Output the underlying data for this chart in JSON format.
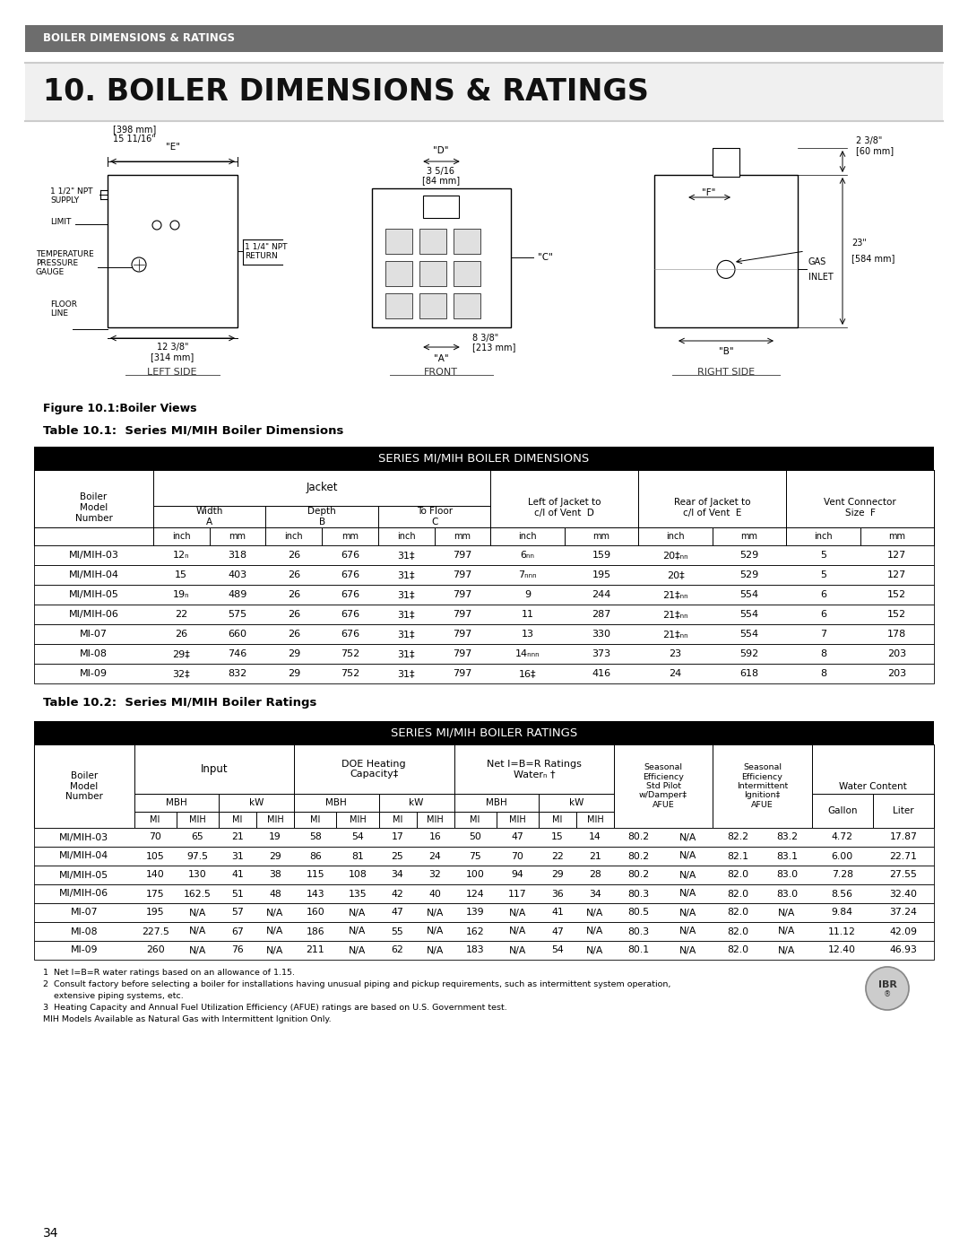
{
  "header_bar_color": "#6d6d6d",
  "header_text": "BOILER DIMENSIONS & RATINGS",
  "title_text": "10. BOILER DIMENSIONS & RATINGS",
  "figure_caption": "Figure 10.1:Boiler Views",
  "table1_title": "Table 10.1:  Series MI/MIH Boiler Dimensions",
  "table2_title": "Table 10.2:  Series MI/MIH Boiler Ratings",
  "table1_header": "SERIES MI/MIH BOILER DIMENSIONS",
  "table2_header": "SERIES MI/MIH BOILER RATINGS",
  "table1_data": [
    [
      "MI/MIH-03",
      "12ₙ",
      "318",
      "26",
      "676",
      "31‡",
      "797",
      "6ₙₙ",
      "159",
      "20‡ₙₙ",
      "529",
      "5",
      "127"
    ],
    [
      "MI/MIH-04",
      "15",
      "403",
      "26",
      "676",
      "31‡",
      "797",
      "7ₙₙₙ",
      "195",
      "20‡",
      "529",
      "5",
      "127"
    ],
    [
      "MI/MIH-05",
      "19ₙ",
      "489",
      "26",
      "676",
      "31‡",
      "797",
      "9",
      "244",
      "21‡ₙₙ",
      "554",
      "6",
      "152"
    ],
    [
      "MI/MIH-06",
      "22",
      "575",
      "26",
      "676",
      "31‡",
      "797",
      "11",
      "287",
      "21‡ₙₙ",
      "554",
      "6",
      "152"
    ],
    [
      "MI-07",
      "26",
      "660",
      "26",
      "676",
      "31‡",
      "797",
      "13",
      "330",
      "21‡ₙₙ",
      "554",
      "7",
      "178"
    ],
    [
      "MI-08",
      "29‡",
      "746",
      "29",
      "752",
      "31‡",
      "797",
      "14ₙₙₙ",
      "373",
      "23",
      "592",
      "8",
      "203"
    ],
    [
      "MI-09",
      "32‡",
      "832",
      "29",
      "752",
      "31‡",
      "797",
      "16‡",
      "416",
      "24",
      "618",
      "8",
      "203"
    ]
  ],
  "table2_data": [
    [
      "MI/MIH-03",
      "70",
      "65",
      "21",
      "19",
      "58",
      "54",
      "17",
      "16",
      "50",
      "47",
      "15",
      "14",
      "80.2",
      "N/A",
      "82.2",
      "83.2",
      "4.72",
      "17.87"
    ],
    [
      "MI/MIH-04",
      "105",
      "97.5",
      "31",
      "29",
      "86",
      "81",
      "25",
      "24",
      "75",
      "70",
      "22",
      "21",
      "80.2",
      "N/A",
      "82.1",
      "83.1",
      "6.00",
      "22.71"
    ],
    [
      "MI/MIH-05",
      "140",
      "130",
      "41",
      "38",
      "115",
      "108",
      "34",
      "32",
      "100",
      "94",
      "29",
      "28",
      "80.2",
      "N/A",
      "82.0",
      "83.0",
      "7.28",
      "27.55"
    ],
    [
      "MI/MIH-06",
      "175",
      "162.5",
      "51",
      "48",
      "143",
      "135",
      "42",
      "40",
      "124",
      "117",
      "36",
      "34",
      "80.3",
      "N/A",
      "82.0",
      "83.0",
      "8.56",
      "32.40"
    ],
    [
      "MI-07",
      "195",
      "N/A",
      "57",
      "N/A",
      "160",
      "N/A",
      "47",
      "N/A",
      "139",
      "N/A",
      "41",
      "N/A",
      "80.5",
      "N/A",
      "82.0",
      "N/A",
      "9.84",
      "37.24"
    ],
    [
      "MI-08",
      "227.5",
      "N/A",
      "67",
      "N/A",
      "186",
      "N/A",
      "55",
      "N/A",
      "162",
      "N/A",
      "47",
      "N/A",
      "80.3",
      "N/A",
      "82.0",
      "N/A",
      "11.12",
      "42.09"
    ],
    [
      "MI-09",
      "260",
      "N/A",
      "76",
      "N/A",
      "211",
      "N/A",
      "62",
      "N/A",
      "183",
      "N/A",
      "54",
      "N/A",
      "80.1",
      "N/A",
      "82.0",
      "N/A",
      "12.40",
      "46.93"
    ]
  ],
  "footnotes": [
    "1  Net I=B=R water ratings based on an allowance of 1.15.",
    "2  Consult factory before selecting a boiler for installations having unusual piping and pickup requirements, such as intermittent system operation,",
    "    extensive piping systems, etc.",
    "3  Heating Capacity and Annual Fuel Utilization Efficiency (AFUE) ratings are based on U.S. Government test.",
    "MIH Models Available as Natural Gas with Intermittent Ignition Only."
  ],
  "page_number": "34",
  "bg_color": "#ffffff"
}
